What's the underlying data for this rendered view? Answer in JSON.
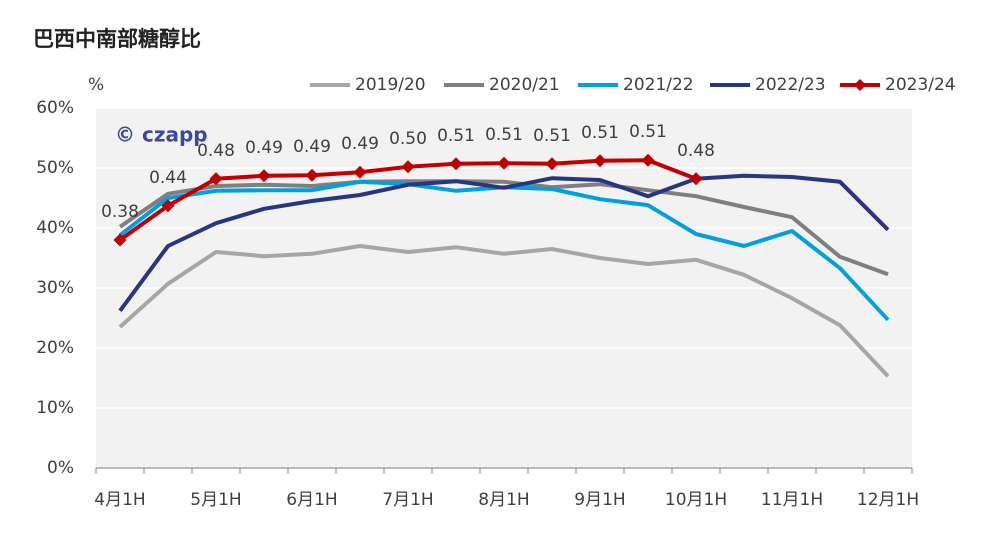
{
  "chart_data": {
    "type": "line",
    "title": "巴西中南部糖醇比",
    "y_label": "%",
    "watermark": "© czapp",
    "categories": [
      "4月1H",
      null,
      "5月1H",
      null,
      "6月1H",
      null,
      "7月1H",
      null,
      "8月1H",
      null,
      "9月1H",
      null,
      "10月1H",
      null,
      "11月1H",
      null,
      "12月1H"
    ],
    "series": [
      {
        "name": "2019/20",
        "color": "#a6a6a6",
        "values": [
          23.5,
          30.7,
          36,
          35.3,
          35.7,
          37,
          36,
          36.8,
          35.7,
          36.5,
          35,
          34,
          34.7,
          32.2,
          28.3,
          23.8,
          15.3
        ]
      },
      {
        "name": "2020/21",
        "color": "#7f7f7f",
        "values": [
          40.2,
          45.7,
          47,
          47.2,
          47,
          47.7,
          47.8,
          47.8,
          47.7,
          46.8,
          47.3,
          46.3,
          45.3,
          43.5,
          41.8,
          35.2,
          32.3
        ]
      },
      {
        "name": "2021/22",
        "color": "#00a0e0",
        "values": [
          38.8,
          45,
          46.2,
          46.3,
          46.3,
          47.7,
          47.3,
          46.2,
          46.8,
          46.5,
          44.8,
          43.8,
          39,
          37,
          39.5,
          33.3,
          24.7
        ]
      },
      {
        "name": "2022/23",
        "color": "#283583",
        "values": [
          26.2,
          37,
          40.8,
          43.2,
          44.5,
          45.5,
          47.2,
          47.8,
          46.7,
          48.3,
          48,
          45.3,
          48.2,
          48.7,
          48.5,
          47.7,
          39.7
        ]
      },
      {
        "name": "2023/24",
        "color": "#c00000",
        "marker": "diamond",
        "values": [
          38,
          43.7,
          48.2,
          48.7,
          48.8,
          49.3,
          50.2,
          50.7,
          50.8,
          50.7,
          51.2,
          51.3,
          48.2,
          null,
          null,
          null,
          null
        ],
        "value_labels": [
          "0.38",
          "0.44",
          "0.48",
          "0.49",
          "0.49",
          "0.49",
          "0.50",
          "0.51",
          "0.51",
          "0.51",
          "0.51",
          "0.51",
          "0.48",
          null,
          null,
          null,
          null
        ]
      }
    ],
    "ylim": [
      0,
      60
    ],
    "yticks": [
      {
        "value": 0,
        "label": "0%"
      },
      {
        "value": 10,
        "label": "10%"
      },
      {
        "value": 20,
        "label": "20%"
      },
      {
        "value": 30,
        "label": "30%"
      },
      {
        "value": 40,
        "label": "40%"
      },
      {
        "value": 50,
        "label": "50%"
      },
      {
        "value": 60,
        "label": "60%"
      }
    ],
    "grid": true,
    "legend": "top-right"
  }
}
